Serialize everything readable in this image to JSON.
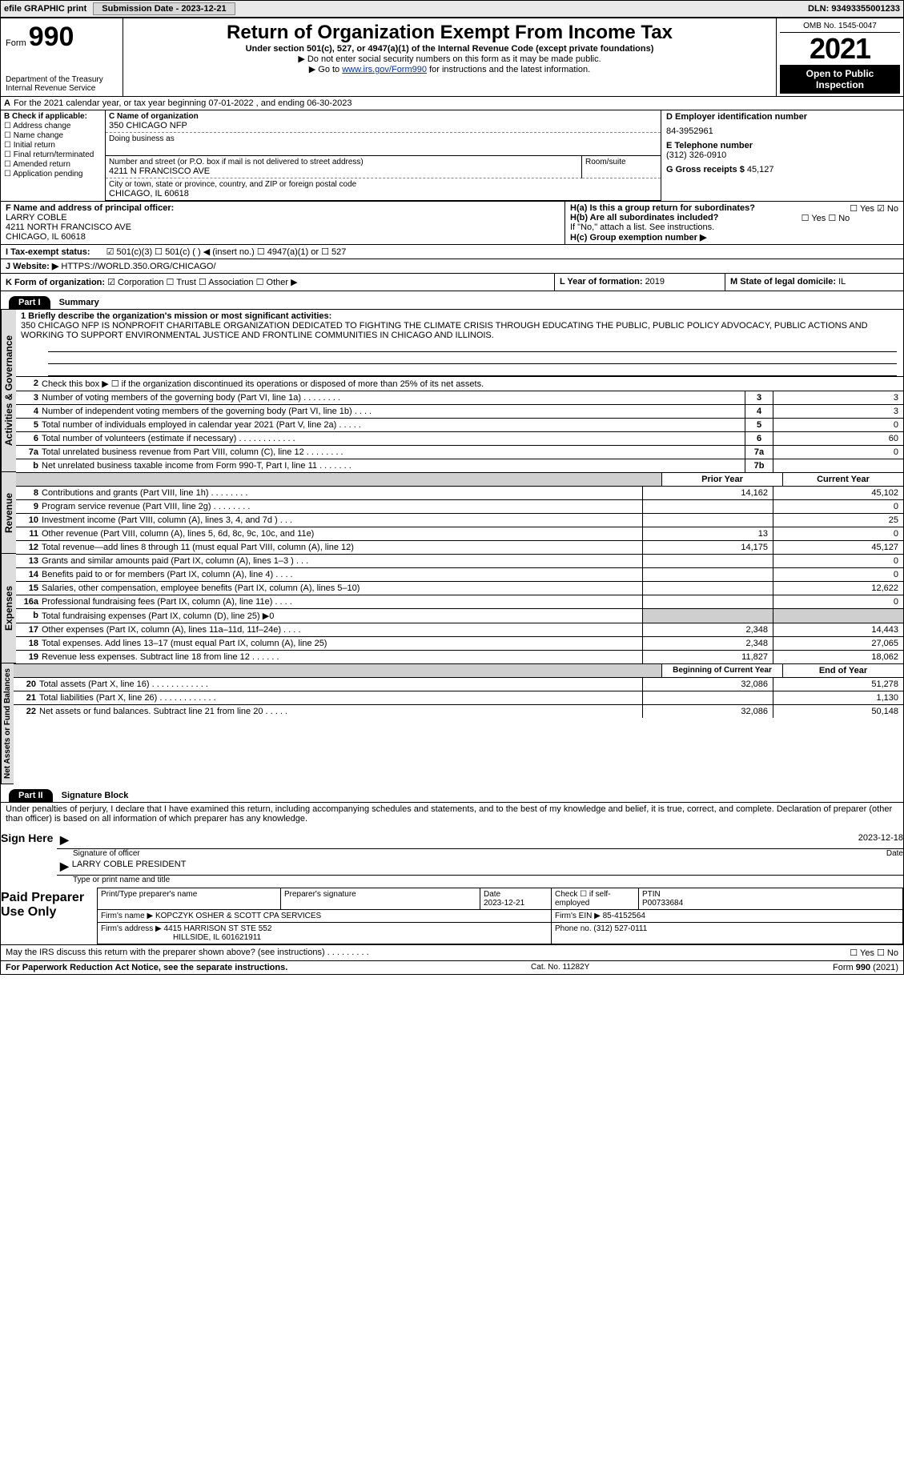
{
  "top_bar": {
    "efile_label": "efile GRAPHIC print",
    "submission_label": "Submission Date - 2023-12-21",
    "dln_label": "DLN: 93493355001233"
  },
  "header": {
    "form_word": "Form",
    "form_number": "990",
    "title": "Return of Organization Exempt From Income Tax",
    "subtitle": "Under section 501(c), 527, or 4947(a)(1) of the Internal Revenue Code (except private foundations)",
    "note1": "▶ Do not enter social security numbers on this form as it may be made public.",
    "note2_prefix": "▶ Go to ",
    "note2_link": "www.irs.gov/Form990",
    "note2_suffix": " for instructions and the latest information.",
    "dept": "Department of the Treasury",
    "irs": "Internal Revenue Service",
    "omb": "OMB No. 1545-0047",
    "year": "2021",
    "open": "Open to Public Inspection"
  },
  "section_A": {
    "label_a": "A",
    "text": "For the 2021 calendar year, or tax year beginning 07-01-2022     , and ending 06-30-2023"
  },
  "col_B": {
    "label": "B Check if applicable:",
    "opts": [
      "Address change",
      "Name change",
      "Initial return",
      "Final return/terminated",
      "Amended return",
      "Application pending"
    ]
  },
  "col_C": {
    "c_label": "C Name of organization",
    "org_name": "350 CHICAGO NFP",
    "dba_label": "Doing business as",
    "addr_label": "Number and street (or P.O. box if mail is not delivered to street address)",
    "addr": "4211 N FRANCISCO AVE",
    "room_label": "Room/suite",
    "city_label": "City or town, state or province, country, and ZIP or foreign postal code",
    "city": "CHICAGO, IL  60618"
  },
  "col_right": {
    "d_label": "D Employer identification number",
    "ein": "84-3952961",
    "e_label": "E Telephone number",
    "phone": "(312) 326-0910",
    "g_label": "G Gross receipts $",
    "g_val": "45,127"
  },
  "row_F": {
    "label": "F Name and address of principal officer:",
    "name": "LARRY COBLE",
    "addr1": "4211 NORTH FRANCISCO AVE",
    "addr2": "CHICAGO, IL  60618"
  },
  "row_H": {
    "ha": "H(a)  Is this a group return for subordinates?",
    "ha_yn": "☐ Yes  ☑ No",
    "hb": "H(b)  Are all subordinates included?",
    "hb_yn": "☐ Yes  ☐ No",
    "hb_note": "If \"No,\" attach a list. See instructions.",
    "hc": "H(c)  Group exemption number ▶"
  },
  "row_I": {
    "label": "I   Tax-exempt status:",
    "opts": "☑ 501(c)(3)    ☐ 501(c) (   ) ◀ (insert no.)    ☐ 4947(a)(1) or    ☐ 527"
  },
  "row_J": {
    "label": "J   Website: ▶",
    "val": "HTTPS://WORLD.350.ORG/CHICAGO/"
  },
  "row_K": {
    "label": "K Form of organization:",
    "opts": "☑ Corporation  ☐ Trust  ☐ Association  ☐ Other ▶"
  },
  "row_L": {
    "label": "L Year of formation: ",
    "val": "2019"
  },
  "row_M": {
    "label": "M State of legal domicile: ",
    "val": "IL"
  },
  "partI": {
    "header": "Part I",
    "title": "Summary",
    "side_activities": "Activities & Governance",
    "side_revenue": "Revenue",
    "side_expenses": "Expenses",
    "side_netassets": "Net Assets or Fund Balances",
    "line1_label": "1  Briefly describe the organization's mission or most significant activities:",
    "mission": "350 CHICAGO NFP IS NONPROFIT CHARITABLE ORGANIZATION DEDICATED TO FIGHTING THE CLIMATE CRISIS THROUGH EDUCATING THE PUBLIC, PUBLIC POLICY ADVOCACY, PUBLIC ACTIONS AND WORKING TO SUPPORT ENVIRONMENTAL JUSTICE AND FRONTLINE COMMUNITIES IN CHICAGO AND ILLINOIS.",
    "prior_hdr": "Prior Year",
    "current_hdr": "Current Year",
    "beg_hdr": "Beginning of Current Year",
    "end_hdr": "End of Year",
    "lines_gov": [
      {
        "n": "2",
        "t": "Check this box ▶ ☐  if the organization discontinued its operations or disposed of more than 25% of its net assets.",
        "id": "",
        "v": ""
      },
      {
        "n": "3",
        "t": "Number of voting members of the governing body (Part VI, line 1a)   .    .    .    .    .    .    .    .",
        "id": "3",
        "v": "3"
      },
      {
        "n": "4",
        "t": "Number of independent voting members of the governing body (Part VI, line 1b)   .    .    .    .",
        "id": "4",
        "v": "3"
      },
      {
        "n": "5",
        "t": "Total number of individuals employed in calendar year 2021 (Part V, line 2a)   .    .    .    .    .",
        "id": "5",
        "v": "0"
      },
      {
        "n": "6",
        "t": "Total number of volunteers (estimate if necessary)   .    .    .    .    .    .    .    .    .    .    .    .",
        "id": "6",
        "v": "60"
      },
      {
        "n": "7a",
        "t": "Total unrelated business revenue from Part VIII, column (C), line 12   .    .    .    .    .    .    .    .",
        "id": "7a",
        "v": "0"
      },
      {
        "n": "b",
        "t": "Net unrelated business taxable income from Form 990-T, Part I, line 11   .    .    .    .    .    .    .",
        "id": "7b",
        "v": ""
      }
    ],
    "lines_rev": [
      {
        "n": "8",
        "t": "Contributions and grants (Part VIII, line 1h)   .    .    .    .    .    .    .    .",
        "p": "14,162",
        "c": "45,102"
      },
      {
        "n": "9",
        "t": "Program service revenue (Part VIII, line 2g)   .    .    .    .    .    .    .    .",
        "p": "",
        "c": "0"
      },
      {
        "n": "10",
        "t": "Investment income (Part VIII, column (A), lines 3, 4, and 7d )   .    .    .",
        "p": "",
        "c": "25"
      },
      {
        "n": "11",
        "t": "Other revenue (Part VIII, column (A), lines 5, 6d, 8c, 9c, 10c, and 11e)",
        "p": "13",
        "c": "0"
      },
      {
        "n": "12",
        "t": "Total revenue—add lines 8 through 11 (must equal Part VIII, column (A), line 12)",
        "p": "14,175",
        "c": "45,127"
      }
    ],
    "lines_exp": [
      {
        "n": "13",
        "t": "Grants and similar amounts paid (Part IX, column (A), lines 1–3 )   .    .    .",
        "p": "",
        "c": "0"
      },
      {
        "n": "14",
        "t": "Benefits paid to or for members (Part IX, column (A), line 4)   .    .    .    .",
        "p": "",
        "c": "0"
      },
      {
        "n": "15",
        "t": "Salaries, other compensation, employee benefits (Part IX, column (A), lines 5–10)",
        "p": "",
        "c": "12,622"
      },
      {
        "n": "16a",
        "t": "Professional fundraising fees (Part IX, column (A), line 11e)   .    .    .    .",
        "p": "",
        "c": "0"
      },
      {
        "n": "b",
        "t": "Total fundraising expenses (Part IX, column (D), line 25) ▶0",
        "p": "SHADE",
        "c": "SHADE"
      },
      {
        "n": "17",
        "t": "Other expenses (Part IX, column (A), lines 11a–11d, 11f–24e)   .    .    .    .",
        "p": "2,348",
        "c": "14,443"
      },
      {
        "n": "18",
        "t": "Total expenses. Add lines 13–17 (must equal Part IX, column (A), line 25)",
        "p": "2,348",
        "c": "27,065"
      },
      {
        "n": "19",
        "t": "Revenue less expenses. Subtract line 18 from line 12   .    .    .    .    .    .",
        "p": "11,827",
        "c": "18,062"
      }
    ],
    "lines_net": [
      {
        "n": "20",
        "t": "Total assets (Part X, line 16)   .    .    .    .    .    .    .    .    .    .    .    .",
        "p": "32,086",
        "c": "51,278"
      },
      {
        "n": "21",
        "t": "Total liabilities (Part X, line 26)   .    .    .    .    .    .    .    .    .    .    .    .",
        "p": "",
        "c": "1,130"
      },
      {
        "n": "22",
        "t": "Net assets or fund balances. Subtract line 21 from line 20   .    .    .    .    .",
        "p": "32,086",
        "c": "50,148"
      }
    ]
  },
  "partII": {
    "header": "Part II",
    "title": "Signature Block",
    "penalty": "Under penalties of perjury, I declare that I have examined this return, including accompanying schedules and statements, and to the best of my knowledge and belief, it is true, correct, and complete. Declaration of preparer (other than officer) is based on all information of which preparer has any knowledge.",
    "sign_here": "Sign Here",
    "sig_officer": "Signature of officer",
    "sig_date": "2023-12-18",
    "date_lbl": "Date",
    "officer_name": "LARRY COBLE  PRESIDENT",
    "type_lbl": "Type or print name and title",
    "paid_lbl": "Paid Preparer Use Only",
    "pp_name_lbl": "Print/Type preparer's name",
    "pp_sig_lbl": "Preparer's signature",
    "pp_date_lbl": "Date",
    "pp_date": "2023-12-21",
    "pp_check_lbl": "Check ☐ if self-employed",
    "ptin_lbl": "PTIN",
    "ptin": "P00733684",
    "firm_name_lbl": "Firm's name    ▶",
    "firm_name": "KOPCZYK OSHER & SCOTT CPA SERVICES",
    "firm_ein_lbl": "Firm's EIN ▶",
    "firm_ein": "85-4152564",
    "firm_addr_lbl": "Firm's address ▶",
    "firm_addr1": "4415 HARRISON ST STE 552",
    "firm_addr2": "HILLSIDE, IL  601621911",
    "firm_phone_lbl": "Phone no.",
    "firm_phone": "(312) 527-0111",
    "discuss": "May the IRS discuss this return with the preparer shown above? (see instructions)   .    .    .    .    .    .    .    .    .",
    "discuss_yn": "☐ Yes  ☐ No"
  },
  "footer": {
    "left": "For Paperwork Reduction Act Notice, see the separate instructions.",
    "cat": "Cat. No. 11282Y",
    "right": "Form 990 (2021)"
  }
}
